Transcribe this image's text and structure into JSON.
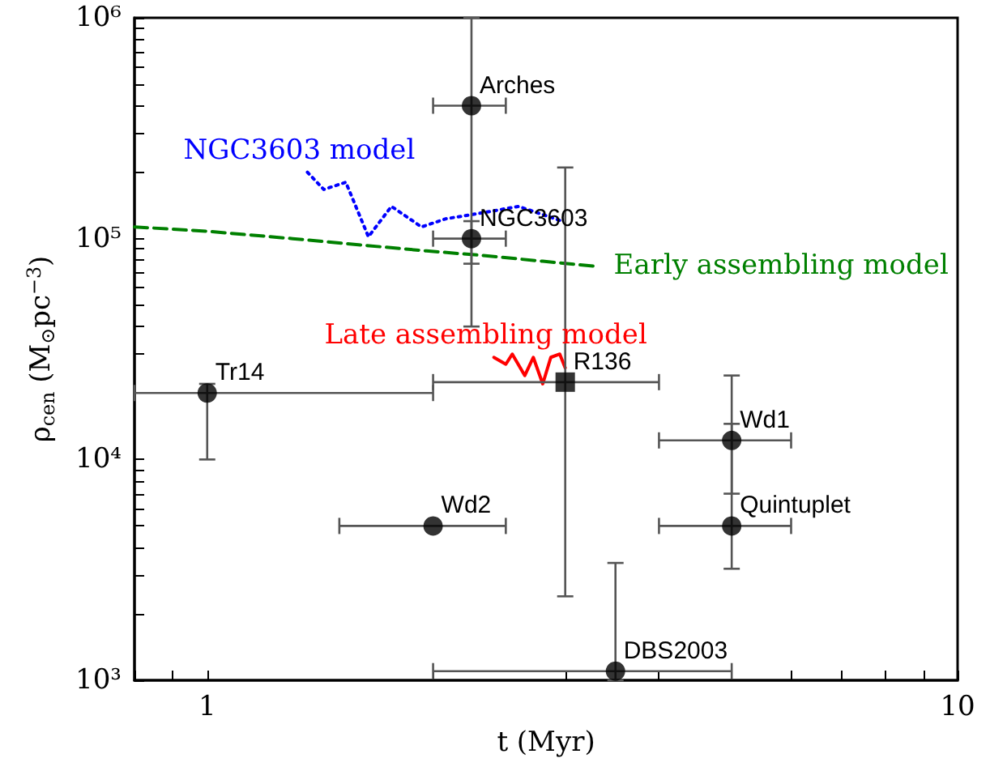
{
  "chart_data": {
    "type": "scatter",
    "xlabel": "t (Myr)",
    "ylabel": "ρ$_{cen}$ (M$_{⊙}$pc$^{−3}$)",
    "log": "xy",
    "grid": false,
    "legend": false,
    "xlim": [
      0.8,
      10
    ],
    "xticks": [
      {
        "value": 0.8,
        "label": null
      },
      {
        "value": 0.9,
        "label": null
      },
      1,
      {
        "value": 2,
        "label": null
      },
      {
        "value": 3,
        "label": null
      },
      {
        "value": 4,
        "label": null
      },
      {
        "value": 5,
        "label": null
      },
      {
        "value": 6,
        "label": null
      },
      {
        "value": 7,
        "label": null
      },
      {
        "value": 8,
        "label": null
      },
      {
        "value": 9,
        "label": null
      },
      10
    ],
    "ylim": [
      1000,
      1000000
    ],
    "yticks": [
      {
        "value": 1000,
        "label": "10³"
      },
      {
        "value": 2000,
        "label": null
      },
      {
        "value": 3000,
        "label": null
      },
      {
        "value": 4000,
        "label": null
      },
      {
        "value": 5000,
        "label": null
      },
      {
        "value": 6000,
        "label": null
      },
      {
        "value": 7000,
        "label": null
      },
      {
        "value": 8000,
        "label": null
      },
      {
        "value": 9000,
        "label": null
      },
      {
        "value": 10000,
        "label": "10⁴"
      },
      {
        "value": 20000,
        "label": null
      },
      {
        "value": 30000,
        "label": null
      },
      {
        "value": 40000,
        "label": null
      },
      {
        "value": 50000,
        "label": null
      },
      {
        "value": 60000,
        "label": null
      },
      {
        "value": 70000,
        "label": null
      },
      {
        "value": 80000,
        "label": null
      },
      {
        "value": 90000,
        "label": null
      },
      {
        "value": 100000,
        "label": "10⁵"
      },
      {
        "value": 200000,
        "label": null
      },
      {
        "value": 300000,
        "label": null
      },
      {
        "value": 400000,
        "label": null
      },
      {
        "value": 500000,
        "label": null
      },
      {
        "value": 600000,
        "label": null
      },
      {
        "value": 700000,
        "label": null
      },
      {
        "value": 800000,
        "label": null
      },
      {
        "value": 900000,
        "label": null
      },
      {
        "value": 1000000,
        "label": "10⁶"
      }
    ],
    "series": [
      {
        "marker": "circle",
        "color": "#000000",
        "x": [
          2.25,
          2.25,
          1,
          2,
          5,
          5,
          3.5
        ],
        "values": [
          400000,
          100000,
          20000,
          5000,
          12200,
          5000,
          1100
        ],
        "errors": [
          [
            40000,
            1000000
          ],
          [
            77000,
            120000
          ],
          [
            10000,
            22000
          ],
          null,
          [
            7000,
            24000
          ],
          [
            3200,
            14500
          ],
          [
            1000,
            3400
          ]
        ],
        "xerrors": [
          [
            2,
            2.5
          ],
          [
            2,
            2.5
          ],
          [
            0.8,
            2
          ],
          [
            1.5,
            2.5
          ],
          [
            4,
            6
          ],
          [
            4,
            6
          ],
          [
            2,
            5
          ]
        ]
      },
      {
        "marker": "square",
        "color": "#000000",
        "x": [
          3
        ],
        "values": [
          22400
        ],
        "errors": [
          [
            2400,
            210000
          ]
        ],
        "xerrors": [
          [
            2,
            4
          ]
        ]
      },
      {
        "name": "NGC3603 model",
        "type": "line",
        "marker": "none",
        "line_style": "dotted",
        "color": "#0000ff",
        "x": [
          1.36,
          1.43,
          1.53,
          1.64,
          1.76,
          1.93,
          2.08,
          2.3,
          2.6,
          2.97
        ],
        "values": [
          200000,
          167000,
          180000,
          102000,
          140000,
          113000,
          123000,
          130000,
          140000,
          120000
        ]
      },
      {
        "name": "Early assembling model",
        "type": "line",
        "marker": "none",
        "line_style": "dashed",
        "color": "#008000",
        "x": [
          0.8,
          1.0,
          1.3,
          1.58,
          1.96,
          2.32,
          2.8,
          3.28
        ],
        "values": [
          113000,
          108000,
          100000,
          94000,
          88000,
          84000,
          79000,
          75000
        ]
      },
      {
        "name": "Late assembling model",
        "type": "line",
        "marker": "none",
        "line_style": "solid",
        "color": "#ff0000",
        "x": [
          2.41,
          2.5,
          2.55,
          2.65,
          2.72,
          2.8,
          2.87,
          2.95,
          3.0
        ],
        "values": [
          29000,
          27000,
          30000,
          24000,
          29000,
          22000,
          29000,
          30000,
          26000
        ]
      }
    ],
    "annotations": [
      {
        "text": "Arches",
        "x": 2.25,
        "y": 400000
      },
      {
        "text": "NGC3603",
        "x": 2.25,
        "y": 100000
      },
      {
        "text": "Tr14",
        "x": 1,
        "y": 20000
      },
      {
        "text": "Wd2",
        "x": 2,
        "y": 5000
      },
      {
        "text": "R136",
        "x": 3,
        "y": 22400
      },
      {
        "text": "Wd1",
        "x": 5,
        "y": 12200
      },
      {
        "text": "Quintuplet",
        "x": 5,
        "y": 5000
      },
      {
        "text": "DBS2003",
        "x": 3.5,
        "y": 1100
      }
    ]
  }
}
